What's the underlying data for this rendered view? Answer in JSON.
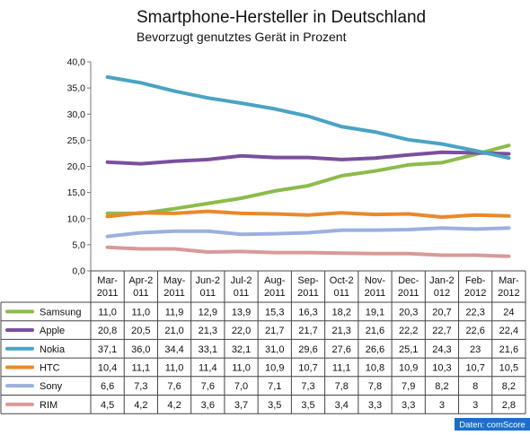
{
  "colors": {
    "Samsung": "#8cbb4a",
    "Apple": "#7b4f9d",
    "Nokia": "#4aa3c3",
    "HTC": "#e8892b",
    "Sony": "#9bb0de",
    "RIM": "#d89a98",
    "source_bg": "#1b6fc8"
  },
  "source": "Daten: comScore",
  "chart_data": {
    "type": "line",
    "title": "Smartphone-Hersteller in Deutschland",
    "subtitle": "Bevorzugt genutztes Gerät in Prozent",
    "ylim": [
      0,
      40
    ],
    "yticks": [
      "0,0",
      "5,0",
      "10,0",
      "15,0",
      "20,0",
      "25,0",
      "30,0",
      "35,0",
      "40,0"
    ],
    "categories": [
      [
        "Mar-",
        "2011"
      ],
      [
        "Apr-2",
        "011"
      ],
      [
        "May-",
        "2011"
      ],
      [
        "Jun-2",
        "011"
      ],
      [
        "Jul-2",
        "011"
      ],
      [
        "Aug-",
        "2011"
      ],
      [
        "Sep-",
        "2011"
      ],
      [
        "Oct-2",
        "011"
      ],
      [
        "Nov-",
        "2011"
      ],
      [
        "Dec-",
        "2011"
      ],
      [
        "Jan-2",
        "012"
      ],
      [
        "Feb-",
        "2012"
      ],
      [
        "Mar-",
        "2012"
      ]
    ],
    "grid": false,
    "legend": "data table below chart",
    "series": [
      {
        "name": "Samsung",
        "values": [
          11.0,
          11.0,
          11.9,
          12.9,
          13.9,
          15.3,
          16.3,
          18.2,
          19.1,
          20.3,
          20.7,
          22.3,
          24
        ],
        "labels": [
          "11,0",
          "11,0",
          "11,9",
          "12,9",
          "13,9",
          "15,3",
          "16,3",
          "18,2",
          "19,1",
          "20,3",
          "20,7",
          "22,3",
          "24"
        ]
      },
      {
        "name": "Apple",
        "values": [
          20.8,
          20.5,
          21.0,
          21.3,
          22.0,
          21.7,
          21.7,
          21.3,
          21.6,
          22.2,
          22.7,
          22.6,
          22.4
        ],
        "labels": [
          "20,8",
          "20,5",
          "21,0",
          "21,3",
          "22,0",
          "21,7",
          "21,7",
          "21,3",
          "21,6",
          "22,2",
          "22,7",
          "22,6",
          "22,4"
        ]
      },
      {
        "name": "Nokia",
        "values": [
          37.1,
          36.0,
          34.4,
          33.1,
          32.1,
          31.0,
          29.6,
          27.6,
          26.6,
          25.1,
          24.3,
          23,
          21.6
        ],
        "labels": [
          "37,1",
          "36,0",
          "34,4",
          "33,1",
          "32,1",
          "31,0",
          "29,6",
          "27,6",
          "26,6",
          "25,1",
          "24,3",
          "23",
          "21,6"
        ]
      },
      {
        "name": "HTC",
        "values": [
          10.4,
          11.1,
          11.0,
          11.4,
          11.0,
          10.9,
          10.7,
          11.1,
          10.8,
          10.9,
          10.3,
          10.7,
          10.5
        ],
        "labels": [
          "10,4",
          "11,1",
          "11,0",
          "11,4",
          "11,0",
          "10,9",
          "10,7",
          "11,1",
          "10,8",
          "10,9",
          "10,3",
          "10,7",
          "10,5"
        ]
      },
      {
        "name": "Sony",
        "values": [
          6.6,
          7.3,
          7.6,
          7.6,
          7.0,
          7.1,
          7.3,
          7.8,
          7.8,
          7.9,
          8.2,
          8,
          8.2
        ],
        "labels": [
          "6,6",
          "7,3",
          "7,6",
          "7,6",
          "7,0",
          "7,1",
          "7,3",
          "7,8",
          "7,8",
          "7,9",
          "8,2",
          "8",
          "8,2"
        ]
      },
      {
        "name": "RIM",
        "values": [
          4.5,
          4.2,
          4.2,
          3.6,
          3.7,
          3.5,
          3.5,
          3.4,
          3.3,
          3.3,
          3,
          3,
          2.8
        ],
        "labels": [
          "4,5",
          "4,2",
          "4,2",
          "3,6",
          "3,7",
          "3,5",
          "3,5",
          "3,4",
          "3,3",
          "3,3",
          "3",
          "3",
          "2,8"
        ]
      }
    ]
  }
}
